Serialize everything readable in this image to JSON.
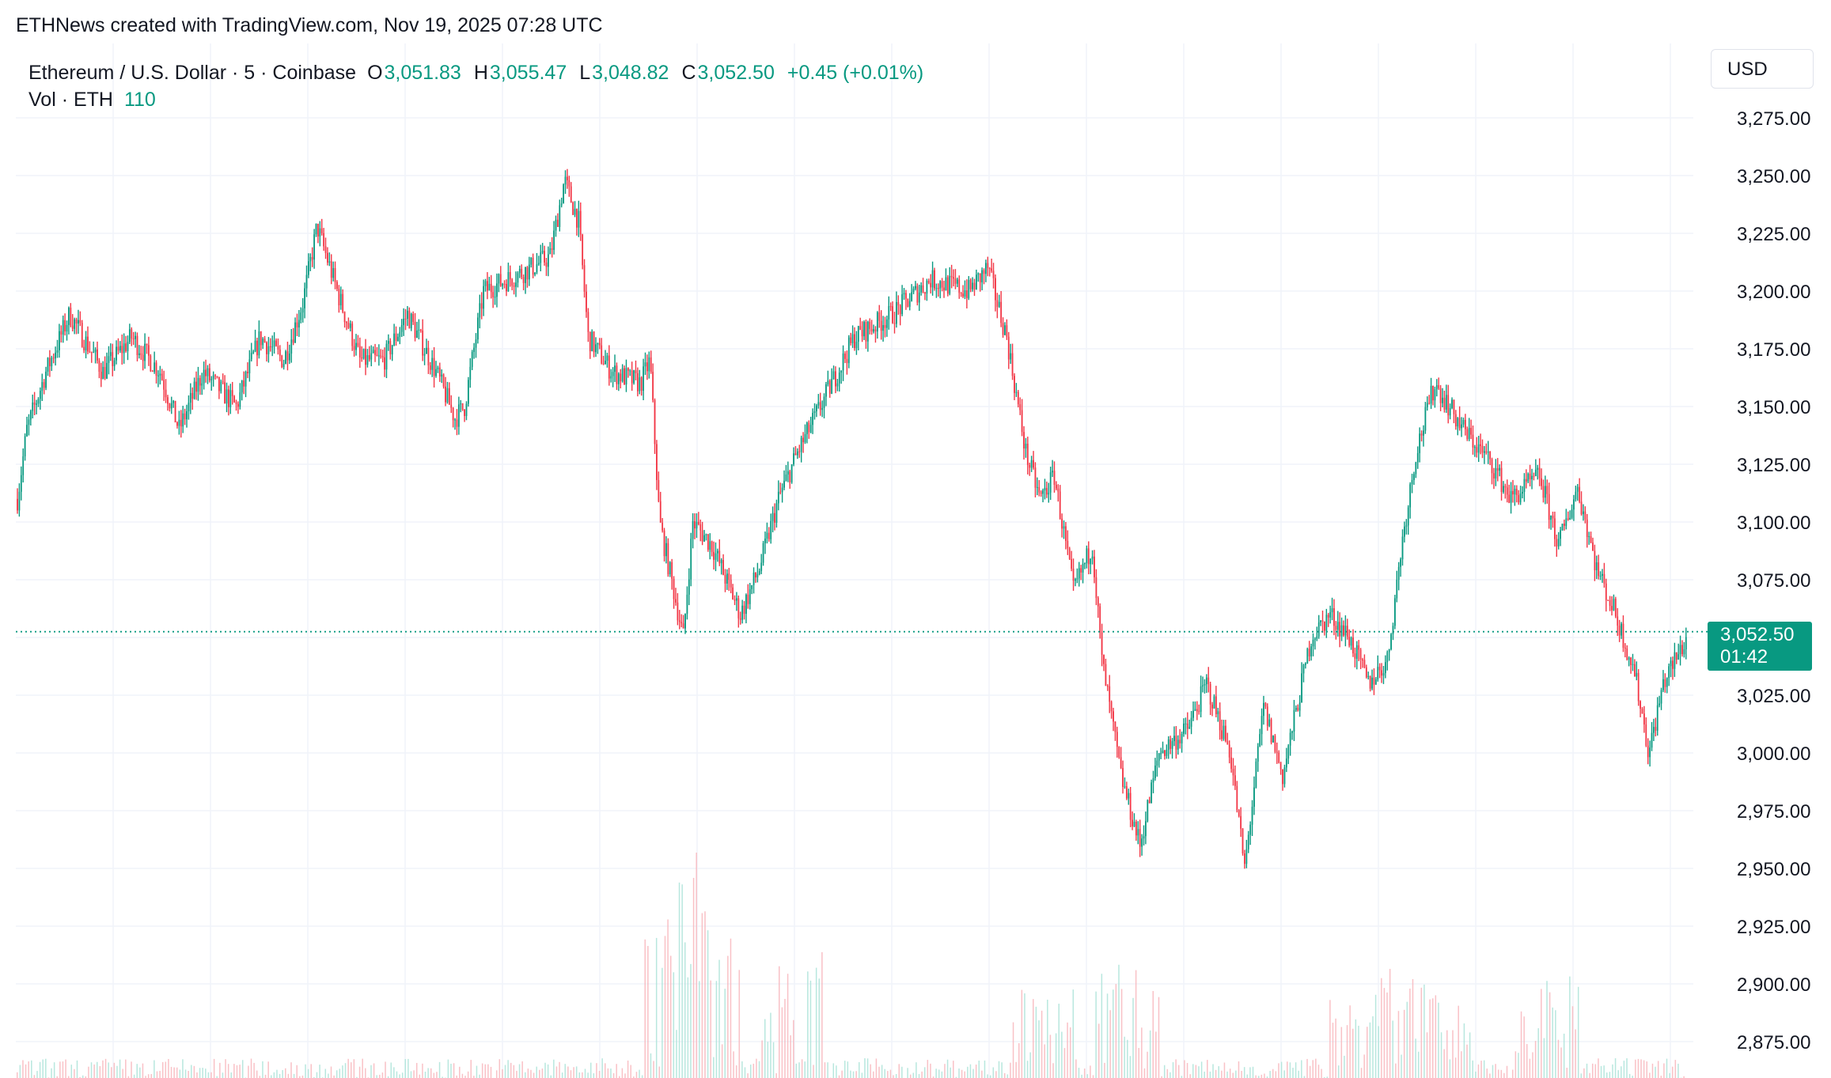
{
  "attribution": "ETHNews created with TradingView.com, Nov 19, 2025 07:28 UTC",
  "legend": {
    "symbol": "Ethereum / U.S. Dollar · 5 · Coinbase",
    "open_label": "O",
    "open": "3,051.83",
    "high_label": "H",
    "high": "3,055.47",
    "low_label": "L",
    "low": "3,048.82",
    "close_label": "C",
    "close": "3,052.50",
    "change": "+0.45 (+0.01%)",
    "volume_label": "Vol · ETH",
    "volume": "110"
  },
  "currency": "USD",
  "last_price": {
    "price": "3,052.50",
    "countdown": "01:42"
  },
  "colors": {
    "up": "#089981",
    "down": "#F23645",
    "grid": "#F0F3FA",
    "text": "#131722"
  },
  "chart_data": {
    "type": "candlestick",
    "title": "Ethereum / U.S. Dollar · 5 · Coinbase",
    "y_ticks": [
      "3,275.00",
      "3,250.00",
      "3,225.00",
      "3,200.00",
      "3,175.00",
      "3,150.00",
      "3,125.00",
      "3,100.00",
      "3,075.00",
      "3,050.00",
      "3,025.00",
      "3,000.00",
      "2,975.00",
      "2,950.00",
      "2,925.00",
      "2,900.00",
      "2,875.00"
    ],
    "y_tick_values": [
      3275,
      3250,
      3225,
      3200,
      3175,
      3150,
      3125,
      3100,
      3075,
      3050,
      3025,
      3000,
      2975,
      2950,
      2925,
      2900,
      2875
    ],
    "ylim": [
      2860,
      3300
    ],
    "last_price": 3052.5,
    "grid": true,
    "price_path": [
      [
        0,
        3110
      ],
      [
        10,
        3140
      ],
      [
        30,
        3165
      ],
      [
        55,
        3190
      ],
      [
        90,
        3165
      ],
      [
        120,
        3180
      ],
      [
        150,
        3165
      ],
      [
        170,
        3140
      ],
      [
        195,
        3165
      ],
      [
        230,
        3150
      ],
      [
        255,
        3180
      ],
      [
        280,
        3170
      ],
      [
        300,
        3195
      ],
      [
        315,
        3228
      ],
      [
        340,
        3195
      ],
      [
        360,
        3170
      ],
      [
        385,
        3170
      ],
      [
        410,
        3190
      ],
      [
        440,
        3165
      ],
      [
        460,
        3145
      ],
      [
        470,
        3150
      ],
      [
        490,
        3200
      ],
      [
        540,
        3210
      ],
      [
        560,
        3215
      ],
      [
        575,
        3248
      ],
      [
        590,
        3230
      ],
      [
        600,
        3180
      ],
      [
        625,
        3165
      ],
      [
        655,
        3160
      ],
      [
        665,
        3170
      ],
      [
        675,
        3100
      ],
      [
        700,
        3050
      ],
      [
        710,
        3100
      ],
      [
        730,
        3090
      ],
      [
        760,
        3060
      ],
      [
        780,
        3080
      ],
      [
        800,
        3110
      ],
      [
        820,
        3130
      ],
      [
        850,
        3155
      ],
      [
        880,
        3180
      ],
      [
        920,
        3190
      ],
      [
        960,
        3205
      ],
      [
        1000,
        3200
      ],
      [
        1020,
        3210
      ],
      [
        1040,
        3180
      ],
      [
        1060,
        3130
      ],
      [
        1075,
        3110
      ],
      [
        1090,
        3120
      ],
      [
        1110,
        3070
      ],
      [
        1130,
        3090
      ],
      [
        1140,
        3040
      ],
      [
        1160,
        2990
      ],
      [
        1180,
        2960
      ],
      [
        1200,
        3000
      ],
      [
        1230,
        3010
      ],
      [
        1250,
        3030
      ],
      [
        1275,
        3000
      ],
      [
        1290,
        2950
      ],
      [
        1310,
        3020
      ],
      [
        1330,
        2990
      ],
      [
        1360,
        3050
      ],
      [
        1380,
        3060
      ],
      [
        1400,
        3050
      ],
      [
        1420,
        3030
      ],
      [
        1440,
        3040
      ],
      [
        1455,
        3090
      ],
      [
        1470,
        3130
      ],
      [
        1490,
        3160
      ],
      [
        1520,
        3140
      ],
      [
        1550,
        3125
      ],
      [
        1570,
        3110
      ],
      [
        1600,
        3120
      ],
      [
        1620,
        3090
      ],
      [
        1640,
        3115
      ],
      [
        1660,
        3080
      ],
      [
        1680,
        3060
      ],
      [
        1700,
        3035
      ],
      [
        1715,
        3000
      ],
      [
        1730,
        3030
      ],
      [
        1755,
        3050
      ]
    ],
    "volume_bars_note": "volume histogram drawn at bottom of pane"
  }
}
